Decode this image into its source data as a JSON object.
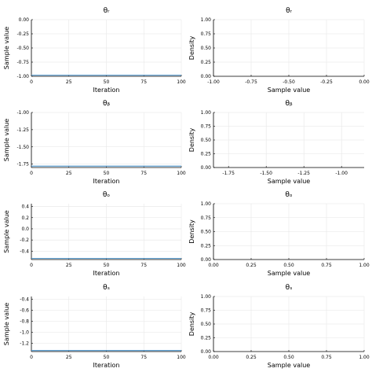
{
  "colors": {
    "trace": "#5e9fd1",
    "grid": "#e6e6e6",
    "axis": "#000000"
  },
  "chart_data": [
    {
      "type": "line",
      "title": "θᵣ",
      "xlabel": "Iteration",
      "ylabel": "Sample value",
      "xlim": [
        0,
        100
      ],
      "ylim": [
        -1.0,
        0.0
      ],
      "xticks": [
        0,
        25,
        50,
        75,
        100
      ],
      "xtick_labels": [
        "0",
        "25",
        "50",
        "75",
        "100"
      ],
      "yticks": [
        -1.0,
        -0.75,
        -0.5,
        -0.25,
        0.0
      ],
      "ytick_labels": [
        "-1.00",
        "-0.75",
        "-0.50",
        "-0.25",
        "0.00"
      ],
      "grid": true,
      "series": [
        {
          "x": [
            0,
            100
          ],
          "y": [
            -0.98,
            -0.98
          ]
        }
      ]
    },
    {
      "type": "line",
      "title": "θᵣ",
      "xlabel": "Sample value",
      "ylabel": "Density",
      "xlim": [
        -1.0,
        0.0
      ],
      "ylim": [
        0.0,
        1.0
      ],
      "xticks": [
        -1.0,
        -0.75,
        -0.5,
        -0.25,
        0.0
      ],
      "xtick_labels": [
        "-1.00",
        "-0.75",
        "-0.50",
        "-0.25",
        "0.00"
      ],
      "yticks": [
        0.0,
        0.25,
        0.5,
        0.75,
        1.0
      ],
      "ytick_labels": [
        "0.00",
        "0.25",
        "0.50",
        "0.75",
        "1.00"
      ],
      "grid": true,
      "series": []
    },
    {
      "type": "line",
      "title": "θᵦ",
      "xlabel": "Iteration",
      "ylabel": "Sample value",
      "xlim": [
        0,
        100
      ],
      "ylim": [
        -1.8,
        -1.0
      ],
      "xticks": [
        0,
        25,
        50,
        75,
        100
      ],
      "xtick_labels": [
        "0",
        "25",
        "50",
        "75",
        "100"
      ],
      "yticks": [
        -1.75,
        -1.5,
        -1.25,
        -1.0
      ],
      "ytick_labels": [
        "-1.75",
        "-1.50",
        "-1.25",
        "-1.00"
      ],
      "grid": true,
      "series": [
        {
          "x": [
            0,
            100
          ],
          "y": [
            -1.78,
            -1.78
          ]
        }
      ]
    },
    {
      "type": "line",
      "title": "θᵦ",
      "xlabel": "Sample value",
      "ylabel": "Density",
      "xlim": [
        -1.85,
        -0.85
      ],
      "ylim": [
        0.0,
        1.0
      ],
      "xticks": [
        -1.75,
        -1.5,
        -1.25,
        -1.0
      ],
      "xtick_labels": [
        "-1.75",
        "-1.50",
        "-1.25",
        "-1.00"
      ],
      "yticks": [
        0.0,
        0.25,
        0.5,
        0.75,
        1.0
      ],
      "ytick_labels": [
        "0.00",
        "0.25",
        "0.50",
        "0.75",
        "1.00"
      ],
      "grid": true,
      "series": []
    },
    {
      "type": "line",
      "title": "θₒ",
      "xlabel": "Iteration",
      "ylabel": "Sample value",
      "xlim": [
        0,
        100
      ],
      "ylim": [
        -0.55,
        0.45
      ],
      "xticks": [
        0,
        25,
        50,
        75,
        100
      ],
      "xtick_labels": [
        "0",
        "25",
        "50",
        "75",
        "100"
      ],
      "yticks": [
        -0.4,
        -0.2,
        0.0,
        0.2,
        0.4
      ],
      "ytick_labels": [
        "-0.4",
        "-0.2",
        "0.0",
        "0.2",
        "0.4"
      ],
      "grid": true,
      "series": [
        {
          "x": [
            0,
            100
          ],
          "y": [
            -0.53,
            -0.53
          ]
        }
      ]
    },
    {
      "type": "line",
      "title": "θₒ",
      "xlabel": "Sample value",
      "ylabel": "Density",
      "xlim": [
        0.0,
        1.0
      ],
      "ylim": [
        0.0,
        1.0
      ],
      "xticks": [
        0.0,
        0.25,
        0.5,
        0.75,
        1.0
      ],
      "xtick_labels": [
        "0.00",
        "0.25",
        "0.50",
        "0.75",
        "1.00"
      ],
      "yticks": [
        0.0,
        0.25,
        0.5,
        0.75,
        1.0
      ],
      "ytick_labels": [
        "0.00",
        "0.25",
        "0.50",
        "0.75",
        "1.00"
      ],
      "grid": true,
      "series": []
    },
    {
      "type": "line",
      "title": "θₛ",
      "xlabel": "Iteration",
      "ylabel": "Sample value",
      "xlim": [
        0,
        100
      ],
      "ylim": [
        -1.35,
        -0.35
      ],
      "xticks": [
        0,
        25,
        50,
        75,
        100
      ],
      "xtick_labels": [
        "0",
        "25",
        "50",
        "75",
        "100"
      ],
      "yticks": [
        -1.2,
        -1.0,
        -0.8,
        -0.6,
        -0.4
      ],
      "ytick_labels": [
        "-1.2",
        "-1.0",
        "-0.8",
        "-0.6",
        "-0.4"
      ],
      "grid": true,
      "series": [
        {
          "x": [
            0,
            100
          ],
          "y": [
            -1.33,
            -1.33
          ]
        }
      ]
    },
    {
      "type": "line",
      "title": "θₛ",
      "xlabel": "Sample value",
      "ylabel": "Density",
      "xlim": [
        0.0,
        1.0
      ],
      "ylim": [
        0.0,
        1.0
      ],
      "xticks": [
        0.0,
        0.25,
        0.5,
        0.75,
        1.0
      ],
      "xtick_labels": [
        "0.00",
        "0.25",
        "0.50",
        "0.75",
        "1.00"
      ],
      "yticks": [
        0.0,
        0.25,
        0.5,
        0.75,
        1.0
      ],
      "ytick_labels": [
        "0.00",
        "0.25",
        "0.50",
        "0.75",
        "1.00"
      ],
      "grid": true,
      "series": []
    }
  ]
}
